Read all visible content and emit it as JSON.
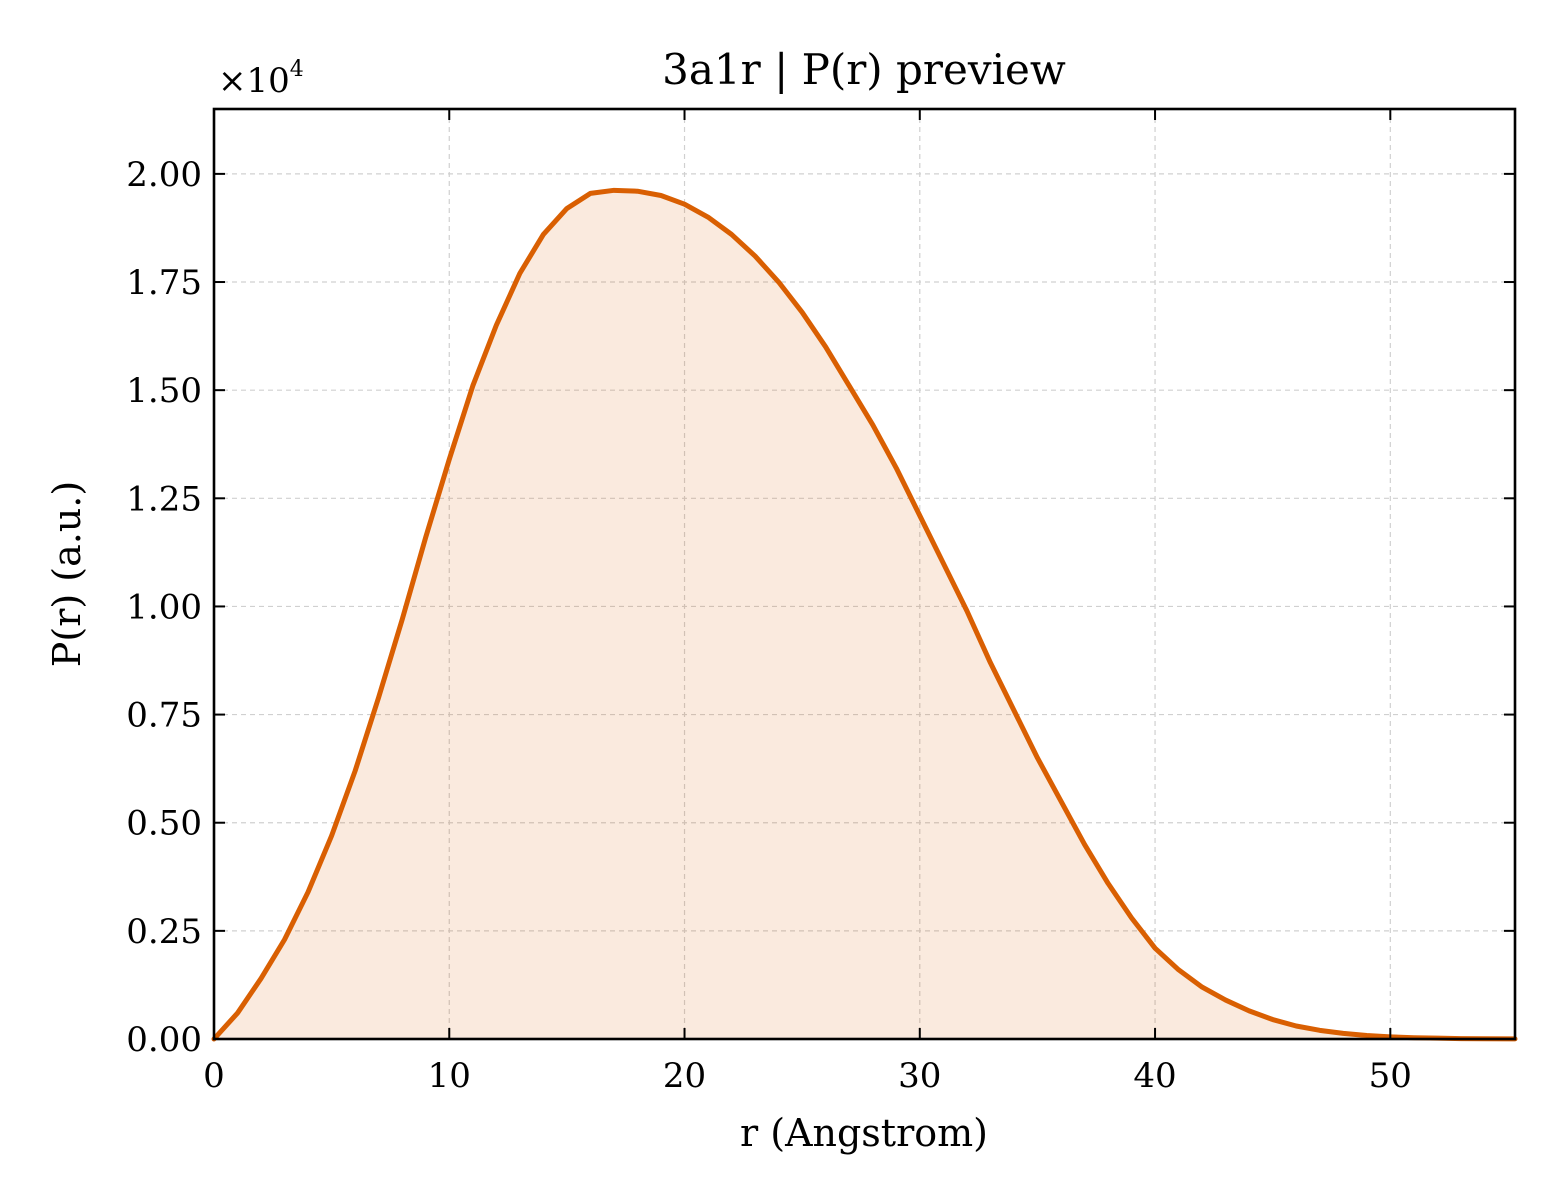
{
  "chart_data": {
    "type": "area",
    "title": "3a1r | P(r) preview",
    "xlabel": "r (Angstrom)",
    "ylabel": "P(r) (a.u.)",
    "y_offset_label": "×10",
    "y_offset_exponent": "4",
    "xlim": [
      0,
      55.3
    ],
    "ylim": [
      0,
      2.15
    ],
    "grid": true,
    "x_ticks": [
      0,
      10,
      20,
      30,
      40,
      50
    ],
    "x_tick_labels": [
      "0",
      "10",
      "20",
      "30",
      "40",
      "50"
    ],
    "y_ticks": [
      0,
      0.25,
      0.5,
      0.75,
      1.0,
      1.25,
      1.5,
      1.75,
      2.0
    ],
    "y_tick_labels": [
      "0.00",
      "0.25",
      "0.50",
      "0.75",
      "1.00",
      "1.25",
      "1.50",
      "1.75",
      "2.00"
    ],
    "series": [
      {
        "color": "#d95f02",
        "fill_color": "#d95f02",
        "x": [
          0,
          1,
          2,
          3,
          4,
          5,
          6,
          7,
          8,
          9,
          10,
          11,
          12,
          13,
          14,
          15,
          16,
          17,
          18,
          19,
          20,
          21,
          22,
          23,
          24,
          25,
          26,
          27,
          28,
          29,
          30,
          31,
          32,
          33,
          34,
          35,
          36,
          37,
          38,
          39,
          40,
          41,
          42,
          43,
          44,
          45,
          46,
          47,
          48,
          49,
          50,
          51,
          52,
          53,
          54,
          55.3
        ],
        "y": [
          0.0,
          0.06,
          0.14,
          0.23,
          0.34,
          0.47,
          0.62,
          0.79,
          0.97,
          1.16,
          1.34,
          1.51,
          1.65,
          1.77,
          1.86,
          1.92,
          1.955,
          1.962,
          1.96,
          1.95,
          1.93,
          1.9,
          1.86,
          1.81,
          1.75,
          1.68,
          1.6,
          1.51,
          1.42,
          1.32,
          1.21,
          1.1,
          0.99,
          0.87,
          0.76,
          0.65,
          0.55,
          0.45,
          0.36,
          0.28,
          0.21,
          0.16,
          0.12,
          0.09,
          0.065,
          0.045,
          0.03,
          0.02,
          0.013,
          0.008,
          0.005,
          0.003,
          0.002,
          0.001,
          0.0005,
          0.0003
        ]
      }
    ]
  }
}
